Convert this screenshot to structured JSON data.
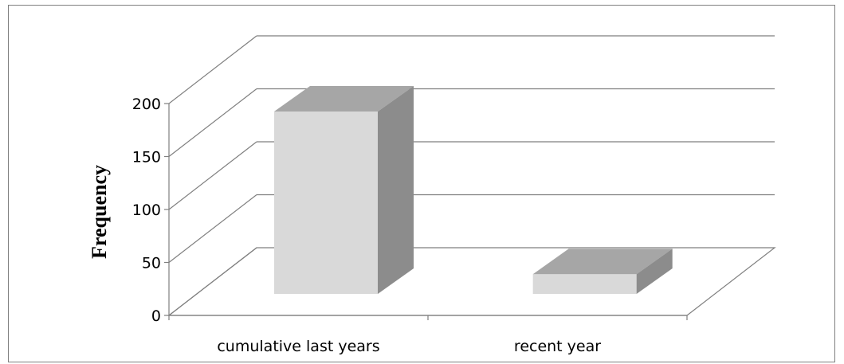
{
  "chart_data": {
    "type": "bar",
    "style": "3d-column",
    "categories": [
      "cumulative last years",
      "recent year"
    ],
    "values": [
      176,
      19
    ],
    "title": "",
    "xlabel": "",
    "ylabel": "Frequency",
    "ylim": [
      0,
      200
    ],
    "yticks": [
      0,
      50,
      100,
      150,
      200
    ],
    "grid": true,
    "legend": "none",
    "colors": {
      "bar_front": "#d9d9d9",
      "bar_top": "#a6a6a6",
      "bar_side": "#8c8c8c",
      "grid": "#7f7f7f"
    }
  }
}
